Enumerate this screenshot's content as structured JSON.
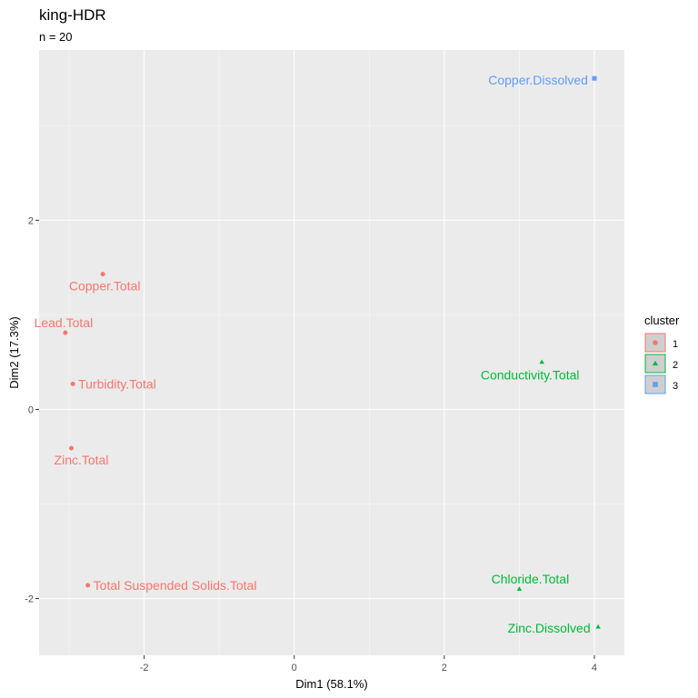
{
  "chart_data": {
    "type": "scatter",
    "title": "king-HDR",
    "subtitle": "n = 20",
    "xlabel": "Dim1 (58.1%)",
    "ylabel": "Dim2 (17.3%)",
    "xlim": [
      -3.4,
      4.4
    ],
    "ylim": [
      -2.6,
      3.8
    ],
    "x_ticks": [
      -2,
      0,
      2,
      4
    ],
    "y_ticks": [
      -2,
      0,
      2
    ],
    "grid": true,
    "legend": {
      "title": "cluster",
      "position": "right",
      "entries": [
        {
          "label": "1",
          "color": "#F8766D",
          "shape": "circle"
        },
        {
          "label": "2",
          "color": "#00BA38",
          "shape": "triangle"
        },
        {
          "label": "3",
          "color": "#619CFF",
          "shape": "square"
        }
      ]
    },
    "points": [
      {
        "label": "Copper.Dissolved",
        "x": 4.0,
        "y": 3.5,
        "cluster": "3"
      },
      {
        "label": "Copper.Total",
        "x": -2.55,
        "y": 1.43,
        "cluster": "1"
      },
      {
        "label": "Lead.Total",
        "x": -3.05,
        "y": 0.81,
        "cluster": "1"
      },
      {
        "label": "Turbidity.Total",
        "x": -2.95,
        "y": 0.27,
        "cluster": "1"
      },
      {
        "label": "Zinc.Total",
        "x": -2.97,
        "y": -0.41,
        "cluster": "1"
      },
      {
        "label": "Total Suspended Solids.Total",
        "x": -2.75,
        "y": -1.86,
        "cluster": "1"
      },
      {
        "label": "Conductivity.Total",
        "x": 3.3,
        "y": 0.5,
        "cluster": "2"
      },
      {
        "label": "Chloride.Total",
        "x": 3.0,
        "y": -1.9,
        "cluster": "2"
      },
      {
        "label": "Zinc.Dissolved",
        "x": 4.05,
        "y": -2.3,
        "cluster": "2"
      }
    ]
  }
}
